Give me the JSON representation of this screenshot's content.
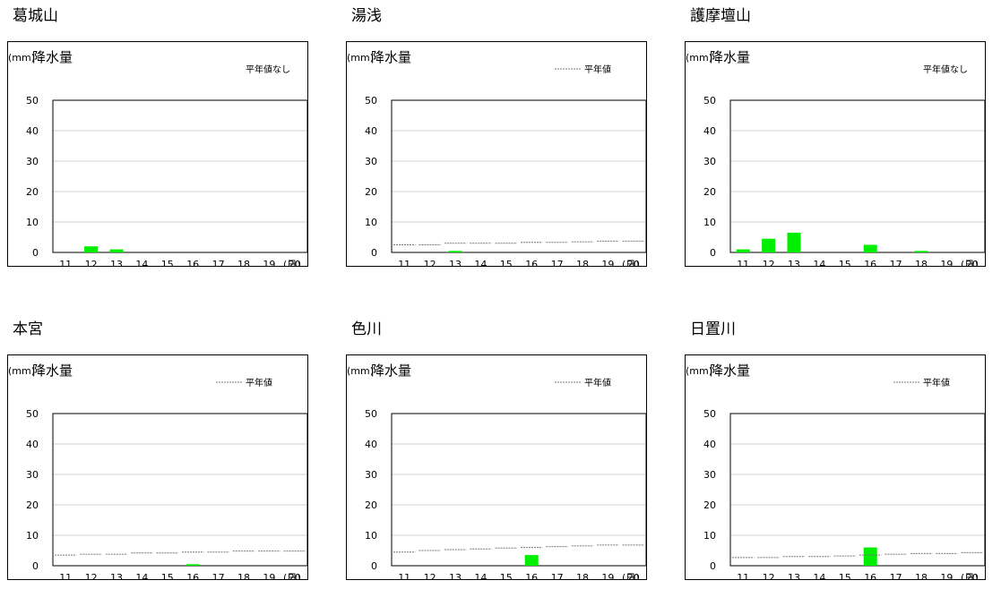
{
  "chart_data": [
    {
      "type": "bar",
      "title": "葛城山",
      "unit": "(mm)",
      "ylabel": "降水量",
      "xlabel": "(日)",
      "legend": "平年値なし",
      "ylim": [
        0,
        50
      ],
      "yticks": [
        0,
        10,
        20,
        30,
        40,
        50
      ],
      "categories": [
        "11",
        "12",
        "13",
        "14",
        "15",
        "16",
        "17",
        "18",
        "19",
        "20"
      ],
      "values": [
        0,
        2,
        1,
        0,
        0,
        0,
        0,
        0,
        0,
        0
      ],
      "normal": null
    },
    {
      "type": "bar",
      "title": "湯浅",
      "unit": "(mm)",
      "ylabel": "降水量",
      "xlabel": "(日)",
      "legend": "平年値",
      "ylim": [
        0,
        50
      ],
      "yticks": [
        0,
        10,
        20,
        30,
        40,
        50
      ],
      "categories": [
        "11",
        "12",
        "13",
        "14",
        "15",
        "16",
        "17",
        "18",
        "19",
        "20"
      ],
      "values": [
        0,
        0,
        0.5,
        0,
        0,
        0,
        0,
        0,
        0,
        0
      ],
      "normal": [
        2.5,
        2.5,
        3,
        3,
        3,
        3.3,
        3.3,
        3.5,
        3.7,
        3.7
      ]
    },
    {
      "type": "bar",
      "title": "護摩壇山",
      "unit": "(mm)",
      "ylabel": "降水量",
      "xlabel": "(日)",
      "legend": "平年値なし",
      "ylim": [
        0,
        50
      ],
      "yticks": [
        0,
        10,
        20,
        30,
        40,
        50
      ],
      "categories": [
        "11",
        "12",
        "13",
        "14",
        "15",
        "16",
        "17",
        "18",
        "19",
        "20"
      ],
      "values": [
        1,
        4.5,
        6.5,
        0,
        0,
        2.5,
        0,
        0.5,
        0,
        0
      ],
      "normal": null
    },
    {
      "type": "bar",
      "title": "本宮",
      "unit": "(mm)",
      "ylabel": "降水量",
      "xlabel": "(日)",
      "legend": "平年値",
      "ylim": [
        0,
        50
      ],
      "yticks": [
        0,
        10,
        20,
        30,
        40,
        50
      ],
      "categories": [
        "11",
        "12",
        "13",
        "14",
        "15",
        "16",
        "17",
        "18",
        "19",
        "20"
      ],
      "values": [
        0,
        0,
        0,
        0,
        0,
        0.5,
        0,
        0,
        0,
        0
      ],
      "normal": [
        3.5,
        3.8,
        3.8,
        4.2,
        4.2,
        4.5,
        4.5,
        4.8,
        4.8,
        4.8
      ]
    },
    {
      "type": "bar",
      "title": "色川",
      "unit": "(mm)",
      "ylabel": "降水量",
      "xlabel": "(日)",
      "legend": "平年値",
      "ylim": [
        0,
        50
      ],
      "yticks": [
        0,
        10,
        20,
        30,
        40,
        50
      ],
      "categories": [
        "11",
        "12",
        "13",
        "14",
        "15",
        "16",
        "17",
        "18",
        "19",
        "20"
      ],
      "values": [
        0,
        0,
        0,
        0,
        0,
        3.5,
        0,
        0,
        0,
        0
      ],
      "normal": [
        4.5,
        5,
        5.3,
        5.5,
        5.8,
        6,
        6.3,
        6.5,
        6.8,
        6.8
      ]
    },
    {
      "type": "bar",
      "title": "日置川",
      "unit": "(mm)",
      "ylabel": "降水量",
      "xlabel": "(日)",
      "legend": "平年値",
      "ylim": [
        0,
        50
      ],
      "yticks": [
        0,
        10,
        20,
        30,
        40,
        50
      ],
      "categories": [
        "11",
        "12",
        "13",
        "14",
        "15",
        "16",
        "17",
        "18",
        "19",
        "20"
      ],
      "values": [
        0,
        0,
        0,
        0,
        0,
        6,
        0,
        0,
        0,
        0
      ],
      "normal": [
        2.7,
        2.7,
        3,
        3,
        3.2,
        3.5,
        3.8,
        4,
        4,
        4.3
      ]
    }
  ],
  "colors": {
    "bar": "#00ee00",
    "normal_line": "#777777",
    "gridline": "#d0d0d0",
    "frame": "#000000"
  }
}
